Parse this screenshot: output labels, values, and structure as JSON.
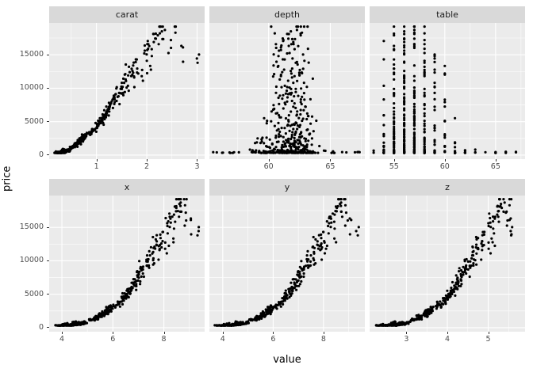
{
  "figure": {
    "background": "#FFFFFF",
    "panel_bg": "#EBEBEB",
    "strip_bg": "#D9D9D9",
    "grid_color": "#FFFFFF",
    "tick_color": "#333333",
    "tick_label_color": "#4D4D4D",
    "point_color": "#000000"
  },
  "chart_data": {
    "type": "scatter",
    "title": "",
    "xlabel": "value",
    "ylabel": "price",
    "legend": "none",
    "grid": "on",
    "y_ticks": [
      0,
      5000,
      10000,
      15000
    ],
    "y_range": [
      -600,
      19750
    ],
    "facets": [
      {
        "label": "carat",
        "field": "carat",
        "x_range": [
          0.06,
          3.15
        ],
        "x_ticks": [
          1,
          2,
          3
        ]
      },
      {
        "label": "depth",
        "field": "depth",
        "x_range": [
          55.2,
          67.8
        ],
        "x_ticks": [
          60,
          65
        ]
      },
      {
        "label": "table",
        "field": "table",
        "x_range": [
          52.6,
          67.9
        ],
        "x_ticks": [
          55,
          60,
          65
        ]
      },
      {
        "label": "x",
        "field": "x",
        "x_range": [
          3.5,
          9.6
        ],
        "x_ticks": [
          4,
          6,
          8
        ]
      },
      {
        "label": "y",
        "field": "y",
        "x_range": [
          3.47,
          9.64
        ],
        "x_ticks": [
          4,
          6,
          8
        ]
      },
      {
        "label": "z",
        "field": "z",
        "x_range": [
          2.1,
          5.9
        ],
        "x_ticks": [
          3,
          4,
          5
        ]
      }
    ],
    "fields": [
      "carat",
      "depth",
      "table",
      "x",
      "y",
      "z",
      "price"
    ],
    "points": [
      [
        0.23,
        61.5,
        55,
        3.95,
        3.98,
        2.43,
        326
      ],
      [
        0.21,
        59.8,
        61,
        3.89,
        3.84,
        2.31,
        326
      ],
      [
        0.23,
        56.9,
        65,
        4.05,
        4.07,
        2.31,
        327
      ],
      [
        0.29,
        62.4,
        58,
        4.2,
        4.23,
        2.63,
        334
      ],
      [
        0.31,
        63.3,
        58,
        4.34,
        4.35,
        2.75,
        335
      ],
      [
        0.24,
        62.8,
        57,
        3.94,
        3.96,
        2.48,
        336
      ],
      [
        0.26,
        61.9,
        55,
        4.07,
        4.11,
        2.53,
        337
      ],
      [
        0.22,
        65.1,
        61,
        3.87,
        3.78,
        2.49,
        337
      ],
      [
        0.23,
        59.4,
        61,
        4.0,
        4.05,
        2.39,
        338
      ],
      [
        0.3,
        64.0,
        55,
        4.25,
        4.28,
        2.73,
        339
      ],
      [
        0.23,
        62.8,
        56,
        3.93,
        3.9,
        2.46,
        340
      ],
      [
        0.22,
        60.4,
        61,
        3.88,
        3.91,
        2.35,
        342
      ],
      [
        0.31,
        62.2,
        54,
        4.35,
        4.37,
        2.71,
        344
      ],
      [
        0.2,
        60.2,
        62,
        3.79,
        3.75,
        2.27,
        345
      ],
      [
        0.32,
        60.9,
        58,
        4.38,
        4.42,
        2.68,
        345
      ],
      [
        0.3,
        62.0,
        54,
        4.31,
        4.34,
        2.68,
        348
      ],
      [
        0.3,
        63.4,
        54,
        4.23,
        4.29,
        2.7,
        351
      ],
      [
        0.26,
        60.4,
        57,
        4.13,
        4.16,
        2.5,
        354
      ],
      [
        0.33,
        61.9,
        55,
        4.44,
        4.47,
        2.76,
        365
      ],
      [
        0.25,
        62.3,
        57,
        4.01,
        4.04,
        2.51,
        367
      ],
      [
        0.29,
        61.2,
        56,
        4.24,
        4.26,
        2.6,
        372
      ],
      [
        0.32,
        62.7,
        58,
        4.36,
        4.38,
        2.74,
        382
      ],
      [
        0.27,
        60.8,
        59,
        4.15,
        4.18,
        2.53,
        388
      ],
      [
        0.34,
        63.0,
        55,
        4.45,
        4.48,
        2.81,
        396
      ],
      [
        0.3,
        61.4,
        57,
        4.28,
        4.31,
        2.64,
        405
      ],
      [
        0.35,
        59.2,
        56,
        4.59,
        4.62,
        2.73,
        417
      ],
      [
        0.28,
        62.1,
        56,
        4.18,
        4.21,
        2.61,
        429
      ],
      [
        0.36,
        61.0,
        57,
        4.6,
        4.63,
        2.81,
        442
      ],
      [
        0.26,
        63.6,
        58,
        4.05,
        4.09,
        2.59,
        454
      ],
      [
        0.37,
        60.4,
        59,
        4.68,
        4.71,
        2.83,
        466
      ],
      [
        0.31,
        61.7,
        55,
        4.33,
        4.36,
        2.68,
        478
      ],
      [
        0.38,
        62.5,
        55,
        4.66,
        4.69,
        2.92,
        491
      ],
      [
        0.24,
        60.0,
        60,
        4.02,
        4.05,
        2.42,
        505
      ],
      [
        0.4,
        61.8,
        56,
        4.72,
        4.76,
        2.93,
        519
      ],
      [
        0.33,
        62.9,
        57,
        4.41,
        4.44,
        2.78,
        534
      ],
      [
        0.41,
        60.7,
        58,
        4.79,
        4.82,
        2.92,
        550
      ],
      [
        0.29,
        63.2,
        56,
        4.19,
        4.22,
        2.66,
        566
      ],
      [
        0.42,
        61.3,
        55,
        4.83,
        4.86,
        2.97,
        583
      ],
      [
        0.35,
        62.0,
        60,
        4.51,
        4.54,
        2.81,
        601
      ],
      [
        0.43,
        59.6,
        57,
        4.9,
        4.94,
        2.93,
        620
      ],
      [
        0.3,
        64.6,
        54,
        4.21,
        4.25,
        2.73,
        640
      ],
      [
        0.44,
        61.5,
        56,
        4.88,
        4.92,
        3.01,
        661
      ],
      [
        0.36,
        62.6,
        59,
        4.52,
        4.56,
        2.84,
        683
      ],
      [
        0.45,
        60.9,
        55,
        4.95,
        4.99,
        3.03,
        706
      ],
      [
        0.32,
        58.7,
        62,
        4.46,
        4.5,
        2.63,
        730
      ],
      [
        0.4,
        62.2,
        57,
        4.7,
        4.73,
        2.93,
        755
      ],
      [
        0.38,
        61.1,
        58,
        4.67,
        4.7,
        2.86,
        781
      ],
      [
        0.42,
        63.1,
        55,
        4.77,
        4.8,
        3.02,
        808
      ],
      [
        0.34,
        60.5,
        56,
        4.5,
        4.53,
        2.73,
        836
      ],
      [
        0.45,
        62.4,
        57,
        4.91,
        4.94,
        3.07,
        865
      ],
      [
        0.5,
        61.8,
        55,
        5.08,
        5.11,
        3.15,
        1120
      ],
      [
        0.52,
        62.3,
        57,
        5.12,
        5.15,
        3.2,
        1162
      ],
      [
        0.54,
        60.6,
        56,
        5.25,
        5.28,
        3.18,
        1205
      ],
      [
        0.51,
        63.1,
        58,
        5.07,
        5.1,
        3.21,
        1250
      ],
      [
        0.56,
        61.4,
        55,
        5.33,
        5.36,
        3.28,
        1297
      ],
      [
        0.53,
        59.8,
        60,
        5.26,
        5.29,
        3.14,
        1345
      ],
      [
        0.58,
        62.0,
        57,
        5.36,
        5.39,
        3.33,
        1395
      ],
      [
        0.55,
        62.8,
        56,
        5.26,
        5.3,
        3.31,
        1447
      ],
      [
        0.6,
        61.1,
        55,
        5.43,
        5.47,
        3.33,
        1500
      ],
      [
        0.57,
        63.5,
        59,
        5.28,
        5.32,
        3.37,
        1556
      ],
      [
        0.62,
        60.3,
        57,
        5.52,
        5.56,
        3.34,
        1614
      ],
      [
        0.59,
        61.9,
        56,
        5.38,
        5.41,
        3.34,
        1674
      ],
      [
        0.64,
        62.6,
        55,
        5.52,
        5.55,
        3.47,
        1736
      ],
      [
        0.61,
        58.9,
        61,
        5.53,
        5.57,
        3.27,
        1800
      ],
      [
        0.66,
        61.6,
        57,
        5.59,
        5.63,
        3.46,
        1867
      ],
      [
        0.63,
        62.2,
        58,
        5.49,
        5.52,
        3.42,
        1936
      ],
      [
        0.68,
        60.8,
        55,
        5.7,
        5.74,
        3.48,
        2008
      ],
      [
        0.65,
        63.0,
        56,
        5.55,
        5.58,
        3.5,
        2083
      ],
      [
        0.7,
        61.5,
        57,
        5.72,
        5.76,
        3.53,
        2160
      ],
      [
        0.67,
        62.4,
        59,
        5.61,
        5.64,
        3.51,
        2241
      ],
      [
        0.72,
        60.1,
        56,
        5.83,
        5.87,
        3.52,
        2324
      ],
      [
        0.69,
        61.8,
        55,
        5.7,
        5.73,
        3.53,
        2411
      ],
      [
        0.74,
        62.9,
        57,
        5.76,
        5.8,
        3.64,
        2500
      ],
      [
        0.71,
        59.5,
        58,
        5.83,
        5.87,
        3.48,
        2594
      ],
      [
        0.76,
        61.2,
        56,
        5.87,
        5.91,
        3.6,
        2690
      ],
      [
        0.73,
        62.7,
        55,
        5.77,
        5.8,
        3.63,
        2791
      ],
      [
        0.78,
        60.6,
        60,
        5.96,
        6.0,
        3.62,
        2895
      ],
      [
        0.75,
        61.9,
        57,
        5.83,
        5.87,
        3.62,
        3003
      ],
      [
        0.8,
        63.3,
        56,
        5.91,
        5.95,
        3.75,
        3115
      ],
      [
        0.82,
        61.4,
        55,
        6.04,
        6.08,
        3.72,
        3232
      ],
      [
        0.9,
        62.2,
        57,
        6.13,
        6.17,
        3.83,
        3350
      ],
      [
        0.91,
        60.9,
        58,
        6.22,
        6.26,
        3.8,
        3480
      ],
      [
        0.93,
        61.7,
        55,
        6.25,
        6.29,
        3.87,
        3615
      ],
      [
        0.95,
        63.1,
        56,
        6.24,
        6.28,
        3.95,
        3754
      ],
      [
        0.97,
        62.0,
        57,
        6.34,
        6.38,
        3.94,
        3898
      ],
      [
        1.0,
        61.3,
        59,
        6.43,
        6.47,
        3.95,
        4047
      ],
      [
        1.01,
        62.5,
        55,
        6.4,
        6.44,
        4.01,
        4201
      ],
      [
        1.02,
        60.5,
        56,
        6.52,
        6.56,
        3.95,
        4360
      ],
      [
        1.04,
        61.9,
        57,
        6.48,
        6.52,
        4.02,
        4525
      ],
      [
        1.05,
        63.4,
        58,
        6.42,
        6.46,
        4.08,
        4695
      ],
      [
        1.07,
        62.2,
        55,
        6.52,
        6.56,
        4.07,
        4871
      ],
      [
        1.09,
        60.2,
        60,
        6.67,
        6.71,
        4.03,
        5053
      ],
      [
        1.1,
        61.6,
        56,
        6.61,
        6.65,
        4.08,
        5240
      ],
      [
        1.12,
        62.8,
        57,
        6.6,
        6.64,
        4.15,
        5434
      ],
      [
        1.14,
        61.0,
        55,
        6.73,
        6.77,
        4.12,
        5634
      ],
      [
        1.15,
        63.2,
        58,
        6.64,
        6.68,
        4.21,
        5840
      ],
      [
        1.17,
        62.3,
        56,
        6.73,
        6.77,
        4.2,
        6053
      ],
      [
        1.19,
        60.7,
        57,
        6.85,
        6.89,
        4.17,
        6272
      ],
      [
        1.2,
        61.8,
        55,
        6.81,
        6.85,
        4.22,
        6498
      ],
      [
        1.22,
        62.6,
        59,
        6.8,
        6.84,
        4.27,
        6731
      ],
      [
        1.24,
        61.2,
        56,
        6.92,
        6.96,
        4.25,
        6971
      ],
      [
        1.25,
        63.0,
        57,
        6.86,
        6.9,
        4.33,
        7218
      ],
      [
        1.27,
        60.4,
        58,
        7.02,
        7.06,
        4.25,
        7472
      ],
      [
        1.29,
        62.1,
        55,
        6.98,
        7.02,
        4.34,
        7734
      ],
      [
        1.3,
        61.5,
        56,
        7.02,
        7.06,
        4.33,
        8003
      ],
      [
        1.32,
        62.9,
        60,
        6.98,
        7.02,
        4.4,
        8280
      ],
      [
        1.34,
        60.8,
        57,
        7.12,
        7.16,
        4.34,
        8565
      ],
      [
        1.35,
        62.4,
        55,
        7.08,
        7.12,
        4.43,
        8858
      ],
      [
        1.4,
        61.9,
        56,
        7.18,
        7.22,
        4.46,
        8100
      ],
      [
        1.42,
        62.7,
        57,
        7.18,
        7.22,
        4.51,
        8700
      ],
      [
        1.45,
        60.6,
        58,
        7.34,
        7.38,
        4.46,
        9300
      ],
      [
        1.48,
        62.2,
        55,
        7.32,
        7.36,
        4.56,
        9900
      ],
      [
        1.5,
        61.4,
        57,
        7.4,
        7.44,
        4.55,
        9200
      ],
      [
        1.52,
        63.1,
        56,
        7.36,
        7.4,
        4.65,
        10200
      ],
      [
        1.55,
        62.0,
        59,
        7.46,
        7.5,
        4.63,
        10800
      ],
      [
        1.58,
        60.9,
        55,
        7.58,
        7.62,
        4.62,
        11300
      ],
      [
        1.6,
        61.7,
        57,
        7.58,
        7.62,
        4.68,
        10100
      ],
      [
        1.63,
        62.5,
        56,
        7.6,
        7.64,
        4.75,
        11900
      ],
      [
        1.66,
        61.1,
        58,
        7.71,
        7.75,
        4.71,
        12400
      ],
      [
        1.7,
        62.8,
        55,
        7.72,
        7.76,
        4.85,
        12900
      ],
      [
        1.73,
        60.4,
        57,
        7.87,
        7.91,
        4.75,
        13400
      ],
      [
        1.75,
        61.9,
        56,
        7.83,
        7.87,
        4.85,
        11600
      ],
      [
        1.78,
        62.3,
        59,
        7.86,
        7.9,
        4.9,
        13900
      ],
      [
        1.8,
        61.3,
        55,
        7.95,
        7.99,
        4.87,
        14300
      ],
      [
        1.9,
        62.1,
        57,
        8.05,
        8.1,
        5.01,
        11800
      ],
      [
        1.95,
        61.5,
        56,
        8.14,
        8.18,
        5.01,
        15200
      ],
      [
        2.0,
        62.9,
        58,
        8.15,
        8.2,
        5.14,
        14100
      ],
      [
        2.01,
        61.0,
        55,
        8.27,
        8.31,
        5.05,
        15700
      ],
      [
        2.05,
        62.4,
        57,
        8.26,
        8.3,
        5.16,
        16300
      ],
      [
        2.1,
        60.8,
        59,
        8.4,
        8.44,
        5.12,
        14800
      ],
      [
        2.14,
        62.0,
        56,
        8.4,
        8.44,
        5.22,
        16900
      ],
      [
        2.18,
        61.6,
        57,
        8.48,
        8.52,
        5.24,
        17400
      ],
      [
        2.22,
        62.6,
        55,
        8.49,
        8.53,
        5.33,
        17900
      ],
      [
        2.26,
        60.5,
        58,
        8.65,
        8.69,
        5.23,
        18200
      ],
      [
        2.3,
        61.8,
        56,
        8.61,
        8.65,
        5.31,
        18500
      ],
      [
        2.36,
        62.3,
        57,
        8.66,
        8.7,
        5.4,
        18700
      ],
      [
        2.48,
        61.2,
        58,
        8.86,
        8.9,
        5.43,
        17200
      ],
      [
        2.57,
        62.7,
        57,
        8.83,
        8.87,
        5.52,
        18300
      ],
      [
        2.72,
        61.0,
        56,
        9.06,
        9.1,
        5.52,
        16100
      ],
      [
        3.01,
        62.2,
        58,
        9.32,
        9.36,
        5.56,
        13800
      ],
      [
        0.3,
        66.3,
        57,
        4.17,
        4.13,
        2.76,
        405
      ],
      [
        0.31,
        67.2,
        56,
        4.2,
        4.16,
        2.81,
        452
      ],
      [
        0.29,
        55.8,
        62,
        4.32,
        4.35,
        2.42,
        410
      ],
      [
        0.33,
        57.2,
        64,
        4.49,
        4.52,
        2.58,
        430
      ],
      [
        0.32,
        60.1,
        66,
        4.42,
        4.45,
        2.67,
        444
      ],
      [
        0.3,
        58.8,
        67,
        4.35,
        4.38,
        2.57,
        478
      ],
      [
        0.31,
        61.1,
        53,
        4.36,
        4.33,
        2.66,
        358
      ]
    ],
    "render": {
      "copies": 3,
      "jitter": {
        "carat": 0.05,
        "depth": 0.7,
        "table": 1,
        "x": 0.07,
        "y": 0.07,
        "z": 0.05,
        "price_frac": 0.14
      },
      "integer_fields": [
        "table"
      ]
    }
  }
}
